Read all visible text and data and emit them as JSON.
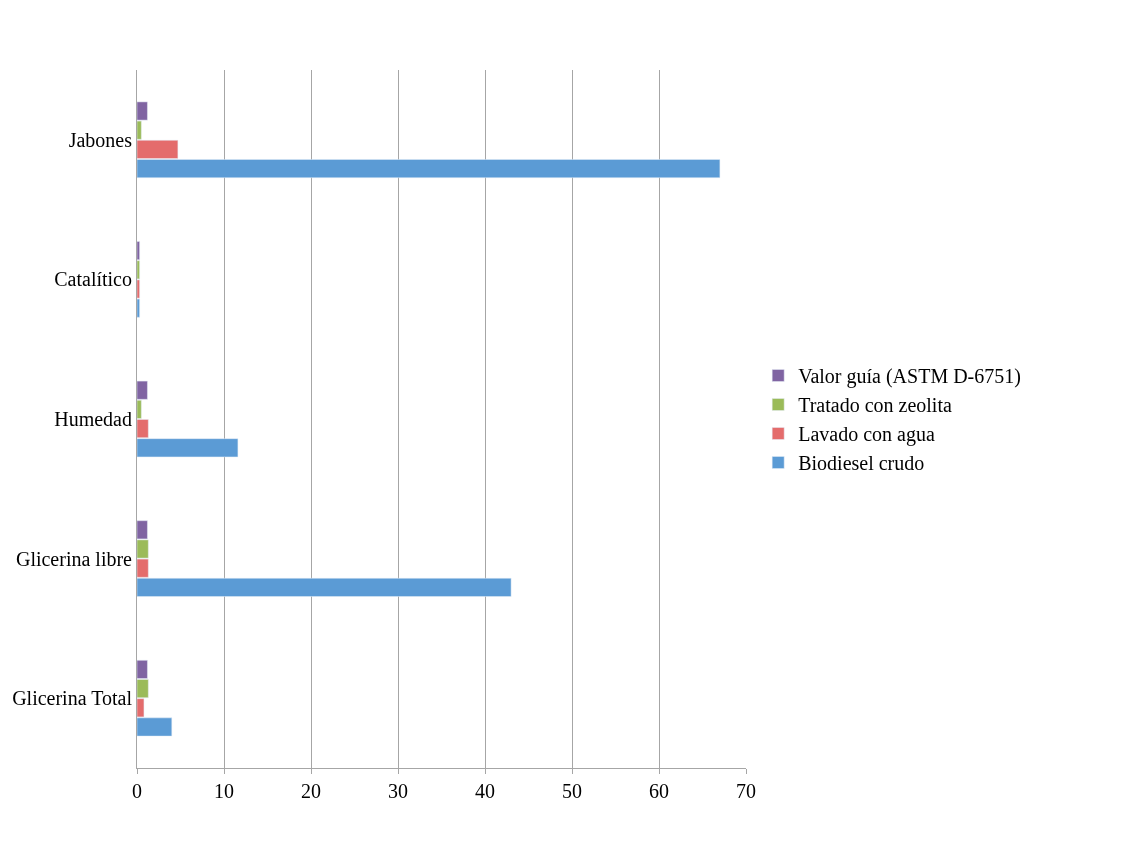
{
  "chart_data": {
    "type": "bar",
    "orientation": "horizontal",
    "categories": [
      "Jabones",
      "Catalítico",
      "Humedad",
      "Glicerina libre",
      "Glicerina Total"
    ],
    "series": [
      {
        "name": "Biodiesel crudo",
        "color": "#5b9bd5",
        "values": [
          67,
          0.3,
          11.6,
          43,
          4
        ]
      },
      {
        "name": "Lavado con agua",
        "color": "#e46c6c",
        "values": [
          4.7,
          0.3,
          1.3,
          1.3,
          0.8
        ]
      },
      {
        "name": "Tratado con zeolita",
        "color": "#9bbb59",
        "values": [
          0.5,
          0.3,
          0.5,
          1.3,
          1.3
        ]
      },
      {
        "name": "Valor guía (ASTM D-6751)",
        "color": "#8064a2",
        "values": [
          1.2,
          0.3,
          1.2,
          1.2,
          1.2
        ]
      }
    ],
    "xlim": [
      0,
      70
    ],
    "xticks": [
      0,
      10,
      20,
      30,
      40,
      50,
      60,
      70
    ],
    "grid": "x",
    "legend": "right"
  }
}
